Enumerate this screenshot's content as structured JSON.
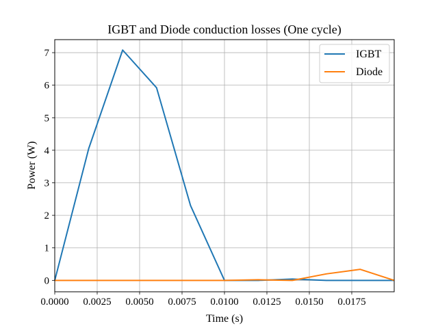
{
  "chart_data": {
    "type": "line",
    "title": "IGBT and Diode conduction losses (One cycle)",
    "xlabel": "Time (s)",
    "ylabel": "Power (W)",
    "xlim": [
      0.0,
      0.02
    ],
    "ylim": [
      -0.35,
      7.4
    ],
    "x_ticks": [
      0.0,
      0.0025,
      0.005,
      0.0075,
      0.01,
      0.0125,
      0.015,
      0.0175
    ],
    "x_tick_labels": [
      "0.0000",
      "0.0025",
      "0.0050",
      "0.0075",
      "0.0100",
      "0.0125",
      "0.0150",
      "0.0175"
    ],
    "y_ticks": [
      0,
      1,
      2,
      3,
      4,
      5,
      6,
      7
    ],
    "y_tick_labels": [
      "0",
      "1",
      "2",
      "3",
      "4",
      "5",
      "6",
      "7"
    ],
    "grid": true,
    "legend_position": "top-right",
    "series": [
      {
        "name": "IGBT",
        "color": "#1f77b4",
        "x": [
          0.0,
          0.002,
          0.004,
          0.006,
          0.008,
          0.01,
          0.012,
          0.014,
          0.016,
          0.018,
          0.02
        ],
        "y": [
          0.0,
          4.05,
          7.08,
          5.92,
          2.3,
          0.0,
          0.0,
          0.04,
          0.0,
          0.0,
          0.0
        ]
      },
      {
        "name": "Diode",
        "color": "#ff7f0e",
        "x": [
          0.0,
          0.002,
          0.004,
          0.006,
          0.008,
          0.01,
          0.012,
          0.014,
          0.016,
          0.018,
          0.02
        ],
        "y": [
          0.0,
          0.0,
          0.0,
          0.0,
          0.0,
          0.0,
          0.02,
          0.0,
          0.2,
          0.34,
          0.0
        ]
      }
    ]
  }
}
